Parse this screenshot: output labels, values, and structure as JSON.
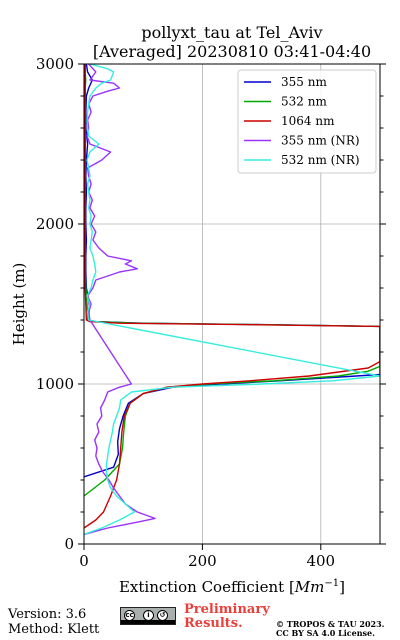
{
  "chart_data": {
    "type": "line",
    "title": "pollyxt_tau at Tel_Aviv",
    "subtitle": "[Averaged] 20230810 03:41-04:40",
    "xlabel": "Extinction Coefficient",
    "xlabel_unit": "Mm",
    "xlabel_exp": "−1",
    "ylabel": "Height (m)",
    "xlim": [
      0,
      500
    ],
    "ylim": [
      0,
      3000
    ],
    "xticks": [
      0,
      200,
      400
    ],
    "yticks": [
      0,
      1000,
      2000,
      3000
    ],
    "grid": true,
    "legend_position": "top-right",
    "series": [
      {
        "name": "355 nm",
        "color": "#0000cc",
        "y": [
          420,
          480,
          560,
          640,
          720,
          800,
          880,
          940,
          980,
          1000,
          1020,
          1050,
          1060,
          1065,
          1200,
          1360,
          1370,
          1380,
          1390,
          1400,
          1500,
          1600,
          1700,
          1800,
          1900,
          2000,
          2100,
          2200,
          2300,
          2400,
          2500,
          2600,
          2700,
          2800,
          2850,
          2900,
          2950,
          3000
        ],
        "x": [
          0,
          50,
          58,
          57,
          60,
          66,
          75,
          100,
          150,
          230,
          330,
          460,
          500,
          500,
          500,
          500,
          330,
          100,
          20,
          8,
          9,
          4,
          3,
          3,
          4,
          3,
          3,
          4,
          3,
          4,
          6,
          3,
          3,
          4,
          8,
          14,
          6,
          4
        ]
      },
      {
        "name": "532 nm",
        "color": "#00aa00",
        "y": [
          300,
          400,
          500,
          600,
          700,
          800,
          880,
          940,
          980,
          1000,
          1020,
          1050,
          1080,
          1110,
          1200,
          1360,
          1370,
          1380,
          1390,
          1400,
          1500,
          1600,
          1700,
          1800,
          1900,
          2000,
          2100,
          2200,
          2300,
          2400,
          2500,
          2600,
          2700,
          2800,
          2850,
          2900,
          2950,
          3000
        ],
        "x": [
          0,
          35,
          60,
          65,
          67,
          70,
          78,
          100,
          140,
          210,
          320,
          430,
          480,
          500,
          500,
          500,
          320,
          90,
          15,
          6,
          5,
          3,
          2,
          2,
          2,
          2,
          2,
          2,
          2,
          2,
          2,
          2,
          2,
          2,
          2,
          3,
          2,
          2
        ]
      },
      {
        "name": "1064 nm",
        "color": "#cc0000",
        "y": [
          100,
          150,
          200,
          300,
          400,
          500,
          600,
          700,
          800,
          880,
          940,
          980,
          1000,
          1020,
          1050,
          1100,
          1140,
          1200,
          1360,
          1370,
          1380,
          1390,
          1400,
          1500,
          1600,
          1700,
          1800,
          1900,
          2000,
          2100,
          2200,
          2300,
          2400,
          2500,
          2600,
          2700,
          2800,
          2900,
          3000
        ],
        "x": [
          0,
          20,
          33,
          45,
          55,
          60,
          62,
          64,
          68,
          78,
          100,
          140,
          200,
          280,
          380,
          480,
          500,
          500,
          500,
          300,
          60,
          10,
          4,
          3,
          2,
          2,
          2,
          2,
          2,
          2,
          2,
          2,
          2,
          2,
          2,
          2,
          2,
          2,
          2
        ]
      },
      {
        "name": "355 nm (NR)",
        "color": "#9933ff",
        "y": [
          60,
          100,
          140,
          160,
          200,
          250,
          300,
          350,
          400,
          450,
          500,
          550,
          600,
          650,
          700,
          750,
          800,
          850,
          900,
          950,
          980,
          1000,
          1400,
          1450,
          1500,
          1550,
          1600,
          1650,
          1700,
          1720,
          1750,
          1770,
          1800,
          1850,
          1900,
          1950,
          2000,
          2050,
          2100,
          2150,
          2200,
          2250,
          2300,
          2350,
          2400,
          2450,
          2500,
          2550,
          2600,
          2650,
          2700,
          2750,
          2800,
          2830,
          2850,
          2880,
          2900,
          2950,
          3000
        ],
        "x": [
          0,
          40,
          95,
          120,
          90,
          70,
          60,
          50,
          42,
          32,
          25,
          20,
          22,
          18,
          25,
          22,
          30,
          28,
          35,
          40,
          60,
          80,
          10,
          8,
          12,
          6,
          15,
          20,
          60,
          90,
          70,
          80,
          40,
          25,
          15,
          20,
          12,
          18,
          10,
          14,
          8,
          12,
          8,
          6,
          30,
          45,
          10,
          5,
          8,
          6,
          12,
          8,
          15,
          40,
          60,
          50,
          10,
          20,
          8
        ]
      },
      {
        "name": "532 nm (NR)",
        "color": "#33eedd",
        "y": [
          60,
          100,
          150,
          200,
          250,
          300,
          350,
          400,
          450,
          500,
          550,
          600,
          650,
          700,
          750,
          800,
          850,
          900,
          950,
          980,
          1000,
          1020,
          1050,
          1400,
          1450,
          1500,
          1550,
          1600,
          1650,
          1700,
          1750,
          1800,
          1850,
          1900,
          1950,
          2000,
          2050,
          2100,
          2150,
          2200,
          2250,
          2300,
          2350,
          2400,
          2450,
          2500,
          2550,
          2600,
          2650,
          2700,
          2750,
          2800,
          2850,
          2880,
          2900,
          2950,
          2970,
          3000
        ],
        "x": [
          0,
          30,
          60,
          85,
          70,
          55,
          45,
          40,
          38,
          38,
          40,
          42,
          45,
          48,
          50,
          55,
          60,
          62,
          80,
          150,
          300,
          420,
          500,
          8,
          6,
          10,
          5,
          12,
          15,
          20,
          18,
          15,
          10,
          12,
          14,
          10,
          12,
          8,
          10,
          8,
          6,
          10,
          8,
          5,
          10,
          25,
          8,
          6,
          5,
          6,
          8,
          10,
          20,
          30,
          45,
          50,
          40,
          10
        ]
      }
    ]
  },
  "footer": {
    "version": "Version: 3.6",
    "method": "Method: Klett",
    "preliminary_line1": "Preliminary",
    "preliminary_line2": "Results.",
    "copyright_line1": "© TROPOS & TAU 2023.",
    "copyright_line2": "CC BY SA 4.0 License.",
    "badge_color": "#aab0ad",
    "preliminary_color": "#e8403a"
  }
}
